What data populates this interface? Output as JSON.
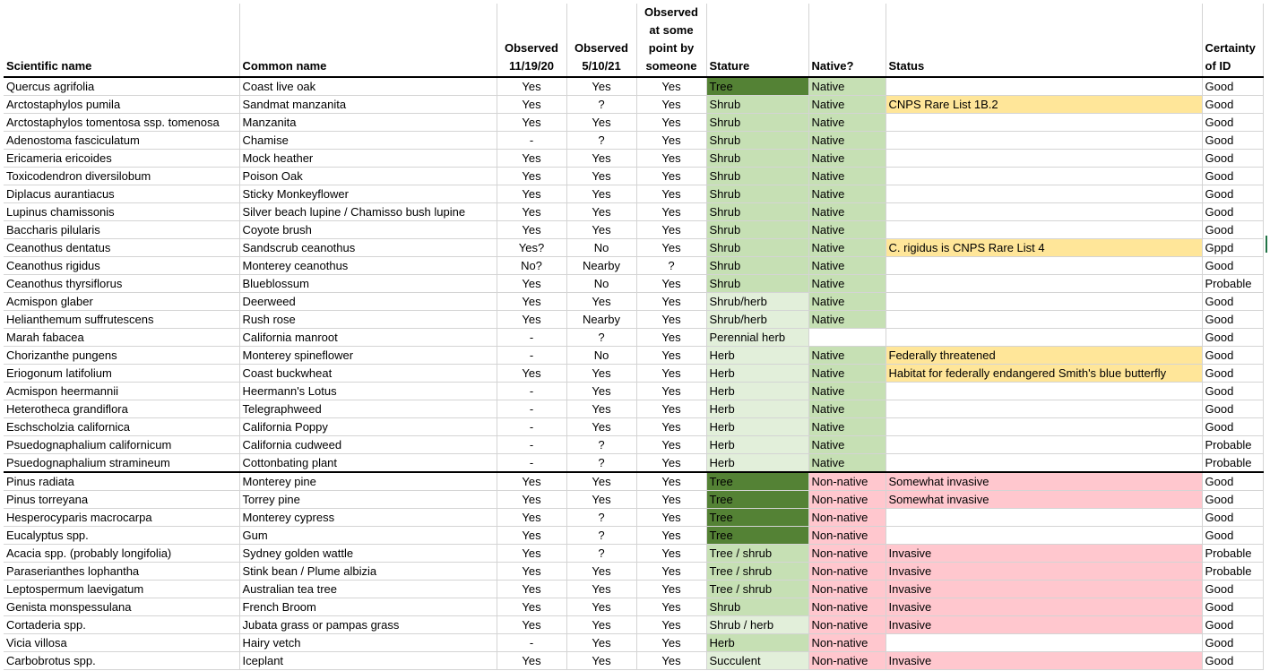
{
  "columns": [
    {
      "key": "sci",
      "label": "Scientific name"
    },
    {
      "key": "common",
      "label": "Common name"
    },
    {
      "key": "obs1",
      "label": "Observed 11/19/20"
    },
    {
      "key": "obs2",
      "label": "Observed 5/10/21"
    },
    {
      "key": "obs3",
      "label": "Observed at some point by someone"
    },
    {
      "key": "stature",
      "label": "Stature"
    },
    {
      "key": "native",
      "label": "Native?"
    },
    {
      "key": "status",
      "label": "Status"
    },
    {
      "key": "cert",
      "label": "Certainty of ID"
    }
  ],
  "colors": {
    "tree": "#548235",
    "shrub": "#c6e0b4",
    "herb": "#e2efda",
    "native": "#c6e0b4",
    "invasive": "#ffc7ce",
    "rare": "#ffe699"
  },
  "rows": [
    {
      "sci": "Quercus agrifolia",
      "common": "Coast live oak",
      "obs1": "Yes",
      "obs2": "Yes",
      "obs3": "Yes",
      "stature": "Tree",
      "stature_fill": "tree",
      "native": "Native",
      "native_fill": "native",
      "status": "",
      "status_fill": "",
      "cert": "Good"
    },
    {
      "sci": "Arctostaphylos pumila",
      "common": "Sandmat manzanita",
      "obs1": "Yes",
      "obs2": "?",
      "obs3": "Yes",
      "stature": "Shrub",
      "stature_fill": "shrub",
      "native": "Native",
      "native_fill": "native",
      "status": "CNPS Rare List 1B.2",
      "status_fill": "rare",
      "cert": "Good"
    },
    {
      "sci": "Arctostaphylos tomentosa ssp. tomenosa",
      "common": "Manzanita",
      "obs1": "Yes",
      "obs2": "Yes",
      "obs3": "Yes",
      "stature": "Shrub",
      "stature_fill": "shrub",
      "native": "Native",
      "native_fill": "native",
      "status": "",
      "status_fill": "",
      "cert": "Good"
    },
    {
      "sci": "Adenostoma fasciculatum",
      "common": "Chamise",
      "obs1": "-",
      "obs2": "?",
      "obs3": "Yes",
      "stature": "Shrub",
      "stature_fill": "shrub",
      "native": "Native",
      "native_fill": "native",
      "status": "",
      "status_fill": "",
      "cert": "Good"
    },
    {
      "sci": "Ericameria ericoides",
      "common": "Mock heather",
      "obs1": "Yes",
      "obs2": "Yes",
      "obs3": "Yes",
      "stature": "Shrub",
      "stature_fill": "shrub",
      "native": "Native",
      "native_fill": "native",
      "status": "",
      "status_fill": "",
      "cert": "Good"
    },
    {
      "sci": "Toxicodendron diversilobum",
      "common": "Poison Oak",
      "obs1": "Yes",
      "obs2": "Yes",
      "obs3": "Yes",
      "stature": "Shrub",
      "stature_fill": "shrub",
      "native": "Native",
      "native_fill": "native",
      "status": "",
      "status_fill": "",
      "cert": "Good"
    },
    {
      "sci": "Diplacus aurantiacus",
      "common": "Sticky Monkeyflower",
      "obs1": "Yes",
      "obs2": "Yes",
      "obs3": "Yes",
      "stature": "Shrub",
      "stature_fill": "shrub",
      "native": "Native",
      "native_fill": "native",
      "status": "",
      "status_fill": "",
      "cert": "Good"
    },
    {
      "sci": "Lupinus chamissonis",
      "common": "Silver beach lupine / Chamisso bush lupine",
      "obs1": "Yes",
      "obs2": "Yes",
      "obs3": "Yes",
      "stature": "Shrub",
      "stature_fill": "shrub",
      "native": "Native",
      "native_fill": "native",
      "status": "",
      "status_fill": "",
      "cert": "Good"
    },
    {
      "sci": "Baccharis pilularis",
      "common": "Coyote brush",
      "obs1": "Yes",
      "obs2": "Yes",
      "obs3": "Yes",
      "stature": "Shrub",
      "stature_fill": "shrub",
      "native": "Native",
      "native_fill": "native",
      "status": "",
      "status_fill": "",
      "cert": "Good"
    },
    {
      "sci": "Ceanothus dentatus",
      "common": "Sandscrub ceanothus",
      "obs1": "Yes?",
      "obs2": "No",
      "obs3": "Yes",
      "stature": "Shrub",
      "stature_fill": "shrub",
      "native": "Native",
      "native_fill": "native",
      "status": "C. rigidus is CNPS Rare List 4",
      "status_fill": "rare",
      "cert": "Gppd"
    },
    {
      "sci": "Ceanothus rigidus",
      "common": "Monterey ceanothus",
      "obs1": "No?",
      "obs2": "Nearby",
      "obs3": "?",
      "stature": "Shrub",
      "stature_fill": "shrub",
      "native": "Native",
      "native_fill": "native",
      "status": "",
      "status_fill": "",
      "cert": "Good"
    },
    {
      "sci": "Ceanothus thyrsiflorus",
      "common": "Blueblossum",
      "obs1": "Yes",
      "obs2": "No",
      "obs3": "Yes",
      "stature": "Shrub",
      "stature_fill": "shrub",
      "native": "Native",
      "native_fill": "native",
      "status": "",
      "status_fill": "",
      "cert": "Probable"
    },
    {
      "sci": "Acmispon glaber",
      "common": "Deerweed",
      "obs1": "Yes",
      "obs2": "Yes",
      "obs3": "Yes",
      "stature": "Shrub/herb",
      "stature_fill": "herb",
      "native": "Native",
      "native_fill": "native",
      "status": "",
      "status_fill": "",
      "cert": "Good"
    },
    {
      "sci": "Helianthemum suffrutescens",
      "common": "Rush rose",
      "obs1": "Yes",
      "obs2": "Nearby",
      "obs3": "Yes",
      "stature": "Shrub/herb",
      "stature_fill": "herb",
      "native": "Native",
      "native_fill": "native",
      "status": "",
      "status_fill": "",
      "cert": "Good"
    },
    {
      "sci": "Marah fabacea",
      "common": "California manroot",
      "obs1": "-",
      "obs2": "?",
      "obs3": "Yes",
      "stature": "Perennial herb",
      "stature_fill": "herb",
      "native": "",
      "native_fill": "",
      "status": "",
      "status_fill": "",
      "cert": "Good"
    },
    {
      "sci": "Chorizanthe pungens",
      "common": "Monterey spineflower",
      "obs1": "-",
      "obs2": "No",
      "obs3": "Yes",
      "stature": "Herb",
      "stature_fill": "herb",
      "native": "Native",
      "native_fill": "native",
      "status": "Federally threatened",
      "status_fill": "rare",
      "cert": "Good"
    },
    {
      "sci": "Eriogonum latifolium",
      "common": "Coast buckwheat",
      "obs1": "Yes",
      "obs2": "Yes",
      "obs3": "Yes",
      "stature": "Herb",
      "stature_fill": "herb",
      "native": "Native",
      "native_fill": "native",
      "status": "Habitat for federally endangered Smith's blue butterfly",
      "status_fill": "rare",
      "cert": "Good"
    },
    {
      "sci": "Acmispon heermannii",
      "common": "Heermann's Lotus",
      "obs1": "-",
      "obs2": "Yes",
      "obs3": "Yes",
      "stature": "Herb",
      "stature_fill": "herb",
      "native": "Native",
      "native_fill": "native",
      "status": "",
      "status_fill": "",
      "cert": "Good"
    },
    {
      "sci": "Heterotheca grandiflora",
      "common": "Telegraphweed",
      "obs1": "-",
      "obs2": "Yes",
      "obs3": "Yes",
      "stature": "Herb",
      "stature_fill": "herb",
      "native": "Native",
      "native_fill": "native",
      "status": "",
      "status_fill": "",
      "cert": "Good"
    },
    {
      "sci": "Eschscholzia californica",
      "common": "California Poppy",
      "obs1": "-",
      "obs2": "Yes",
      "obs3": "Yes",
      "stature": "Herb",
      "stature_fill": "herb",
      "native": "Native",
      "native_fill": "native",
      "status": "",
      "status_fill": "",
      "cert": "Good"
    },
    {
      "sci": "Psuedognaphalium californicum",
      "common": "California cudweed",
      "obs1": "-",
      "obs2": "?",
      "obs3": "Yes",
      "stature": "Herb",
      "stature_fill": "herb",
      "native": "Native",
      "native_fill": "native",
      "status": "",
      "status_fill": "",
      "cert": "Probable"
    },
    {
      "sci": "Psuedognaphalium stramineum",
      "common": "Cottonbating plant",
      "obs1": "-",
      "obs2": "?",
      "obs3": "Yes",
      "stature": "Herb",
      "stature_fill": "herb",
      "native": "Native",
      "native_fill": "native",
      "status": "",
      "status_fill": "",
      "cert": "Probable",
      "sep": true
    },
    {
      "sci": "Pinus radiata",
      "common": "Monterey pine",
      "obs1": "Yes",
      "obs2": "Yes",
      "obs3": "Yes",
      "stature": "Tree",
      "stature_fill": "tree",
      "native": "Non-native",
      "native_fill": "invasive",
      "status": "Somewhat invasive",
      "status_fill": "invasive",
      "cert": "Good"
    },
    {
      "sci": "Pinus torreyana",
      "common": "Torrey pine",
      "obs1": "Yes",
      "obs2": "Yes",
      "obs3": "Yes",
      "stature": "Tree",
      "stature_fill": "tree",
      "native": "Non-native",
      "native_fill": "invasive",
      "status": "Somewhat invasive",
      "status_fill": "invasive",
      "cert": "Good"
    },
    {
      "sci": "Hesperocyparis macrocarpa",
      "common": "Monterey cypress",
      "obs1": "Yes",
      "obs2": "?",
      "obs3": "Yes",
      "stature": "Tree",
      "stature_fill": "tree",
      "native": "Non-native",
      "native_fill": "invasive",
      "status": "",
      "status_fill": "",
      "cert": "Good"
    },
    {
      "sci": "Eucalyptus spp.",
      "common": "Gum",
      "obs1": "Yes",
      "obs2": "?",
      "obs3": "Yes",
      "stature": "Tree",
      "stature_fill": "tree",
      "native": "Non-native",
      "native_fill": "invasive",
      "status": "",
      "status_fill": "",
      "cert": "Good"
    },
    {
      "sci": "Acacia spp. (probably longifolia)",
      "common": "Sydney golden wattle",
      "obs1": "Yes",
      "obs2": "?",
      "obs3": "Yes",
      "stature": "Tree / shrub",
      "stature_fill": "shrub",
      "native": "Non-native",
      "native_fill": "invasive",
      "status": "Invasive",
      "status_fill": "invasive",
      "cert": "Probable"
    },
    {
      "sci": "Paraserianthes lophantha",
      "common": "Stink bean / Plume albizia",
      "obs1": "Yes",
      "obs2": "Yes",
      "obs3": "Yes",
      "stature": "Tree / shrub",
      "stature_fill": "shrub",
      "native": "Non-native",
      "native_fill": "invasive",
      "status": "Invasive",
      "status_fill": "invasive",
      "cert": "Probable"
    },
    {
      "sci": "Leptospermum laevigatum",
      "common": "Australian tea tree",
      "obs1": "Yes",
      "obs2": "Yes",
      "obs3": "Yes",
      "stature": "Tree / shrub",
      "stature_fill": "shrub",
      "native": "Non-native",
      "native_fill": "invasive",
      "status": "Invasive",
      "status_fill": "invasive",
      "cert": "Good"
    },
    {
      "sci": "Genista monspessulana",
      "common": "French Broom",
      "obs1": "Yes",
      "obs2": "Yes",
      "obs3": "Yes",
      "stature": "Shrub",
      "stature_fill": "shrub",
      "native": "Non-native",
      "native_fill": "invasive",
      "status": "Invasive",
      "status_fill": "invasive",
      "cert": "Good"
    },
    {
      "sci": "Cortaderia spp.",
      "common": "Jubata grass or pampas grass",
      "obs1": "Yes",
      "obs2": "Yes",
      "obs3": "Yes",
      "stature": "Shrub / herb",
      "stature_fill": "herb",
      "native": "Non-native",
      "native_fill": "invasive",
      "status": "Invasive",
      "status_fill": "invasive",
      "cert": "Good"
    },
    {
      "sci": "Vicia villosa",
      "common": "Hairy vetch",
      "obs1": "-",
      "obs2": "Yes",
      "obs3": "Yes",
      "stature": "Herb",
      "stature_fill": "shrub",
      "native": "Non-native",
      "native_fill": "invasive",
      "status": "",
      "status_fill": "",
      "cert": "Good"
    },
    {
      "sci": "Carbobrotus spp.",
      "common": "Iceplant",
      "obs1": "Yes",
      "obs2": "Yes",
      "obs3": "Yes",
      "stature": "Succulent",
      "stature_fill": "herb",
      "native": "Non-native",
      "native_fill": "invasive",
      "status": "Invasive",
      "status_fill": "invasive",
      "cert": "Good"
    }
  ]
}
